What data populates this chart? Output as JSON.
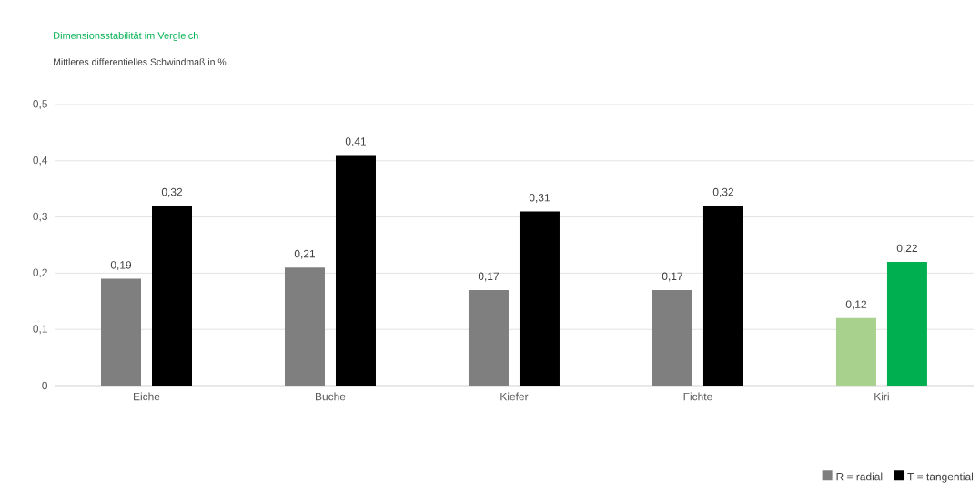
{
  "chart_data": {
    "type": "bar",
    "title": "Dimensionsstabilität im Vergleich",
    "subtitle": "Mittleres differentielles Schwindmaß in %",
    "categories": [
      "Eiche",
      "Buche",
      "Kiefer",
      "Fichte",
      "Kiri"
    ],
    "series": [
      {
        "name": "R = radial",
        "color": "#7f7f7f",
        "colors": [
          "#7f7f7f",
          "#7f7f7f",
          "#7f7f7f",
          "#7f7f7f",
          "#a9d18e"
        ],
        "values": [
          0.19,
          0.21,
          0.17,
          0.17,
          0.12
        ],
        "value_labels": [
          "0,19",
          "0,21",
          "0,17",
          "0,17",
          "0,12"
        ]
      },
      {
        "name": "T = tangential",
        "color": "#000000",
        "colors": [
          "#000000",
          "#000000",
          "#000000",
          "#000000",
          "#00b050"
        ],
        "values": [
          0.32,
          0.41,
          0.31,
          0.32,
          0.22
        ],
        "value_labels": [
          "0,32",
          "0,41",
          "0,31",
          "0,32",
          "0,22"
        ]
      }
    ],
    "ylim": [
      0,
      0.5
    ],
    "yticks": [
      0,
      {
        "value": 0.1,
        "label": "0,1"
      },
      {
        "value": 0.2,
        "label": "0,2"
      },
      {
        "value": 0.3,
        "label": "0,3"
      },
      {
        "value": 0.4,
        "label": "0,4"
      },
      {
        "value": 0.5,
        "label": "0,5"
      }
    ],
    "grid": "y",
    "legend": "bottom right"
  }
}
